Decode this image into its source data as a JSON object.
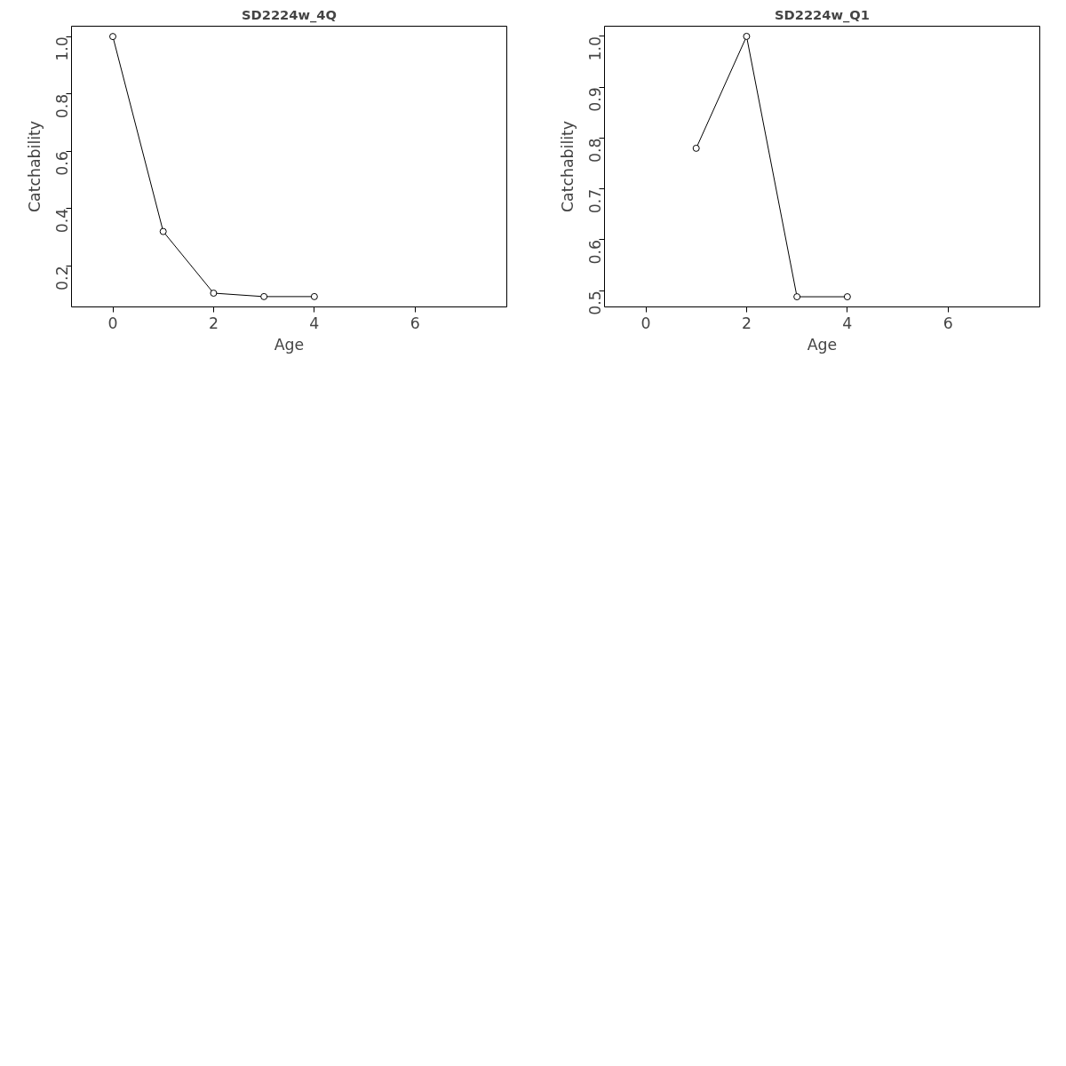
{
  "chart_data": [
    {
      "type": "line",
      "title": "SD2224w_4Q",
      "xlabel": "Age",
      "ylabel": "Catchability",
      "x": [
        0,
        1,
        2,
        3,
        4
      ],
      "series": [
        {
          "color": "#000000",
          "values": [
            1.0,
            0.32,
            0.105,
            0.093,
            0.093
          ]
        }
      ],
      "marker": "circle",
      "line_style": "solid",
      "grid": false,
      "xlim": [
        -0.82,
        7.82
      ],
      "xticks": [
        0,
        2,
        4,
        6
      ],
      "ylim": [
        0.057,
        1.036
      ],
      "yticks": [
        0.2,
        0.4,
        0.6,
        0.8,
        {
          "value": 1,
          "label": "1.0"
        }
      ]
    },
    {
      "type": "line",
      "title": "SD2224w_Q1",
      "xlabel": "Age",
      "ylabel": "Catchability",
      "x": [
        1,
        2,
        3,
        4
      ],
      "series": [
        {
          "color": "#000000",
          "values": [
            0.78,
            1.0,
            0.488,
            0.488
          ]
        }
      ],
      "marker": "circle",
      "line_style": "solid",
      "grid": false,
      "xlim": [
        -0.82,
        7.82
      ],
      "xticks": [
        0,
        2,
        4,
        6
      ],
      "ylim": [
        0.468,
        1.02
      ],
      "yticks": [
        0.5,
        0.6,
        0.7,
        0.8,
        0.9,
        {
          "value": 1,
          "label": "1.0"
        }
      ]
    }
  ]
}
